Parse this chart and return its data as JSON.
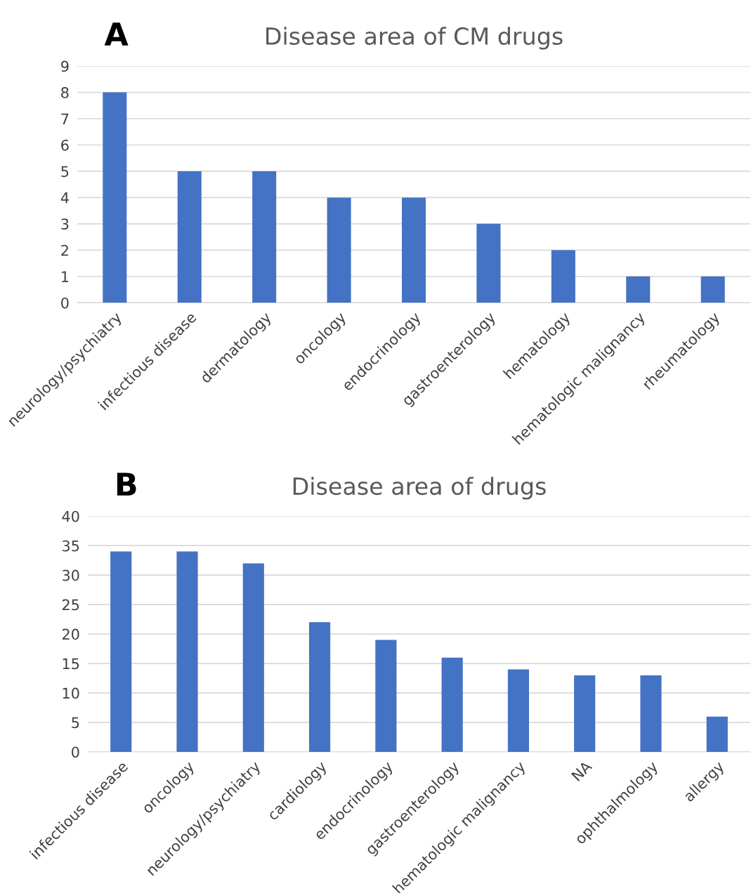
{
  "chart_data": [
    {
      "type": "bar",
      "title": "Disease area of CM drugs",
      "annotations": [
        "A"
      ],
      "categories": [
        "neurology/psychiatry",
        "infectious disease",
        "dermatology",
        "oncology",
        "endocrinology",
        "gastroenterology",
        "hematology",
        "hematologic malignancy",
        "rheumatology"
      ],
      "values": [
        8,
        5,
        5,
        4,
        4,
        3,
        2,
        1,
        1
      ],
      "color": "#4472c4",
      "ylim": [
        0,
        9
      ],
      "yticks": [
        0,
        1,
        2,
        3,
        4,
        5,
        6,
        7,
        8,
        9
      ],
      "grid": "y",
      "legend": false
    },
    {
      "type": "bar",
      "title": "Disease area of drugs",
      "annotations": [
        "B"
      ],
      "categories": [
        "infectious disease",
        "oncology",
        "neurology/psychiatry",
        "cardiology",
        "endocrinology",
        "gastroenterology",
        "hematologic malignancy",
        "NA",
        "ophthalmology",
        "allergy"
      ],
      "values": [
        34,
        34,
        32,
        22,
        19,
        16,
        14,
        13,
        13,
        6
      ],
      "color": "#4472c4",
      "ylim": [
        0,
        40
      ],
      "yticks": [
        0,
        5,
        10,
        15,
        20,
        25,
        30,
        35,
        40
      ],
      "grid": "y",
      "legend": false
    }
  ]
}
